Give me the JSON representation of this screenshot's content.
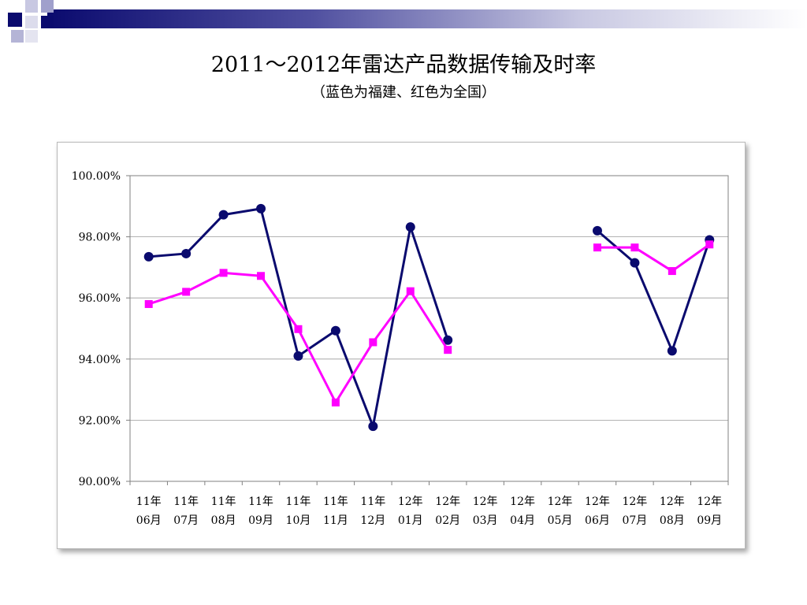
{
  "slide": {
    "title": "2011～2012年雷达产品数据传输及时率",
    "subtitle": "（蓝色为福建、红色为全国）",
    "decor_colors": [
      "#0a0a6e",
      "#2b2b8a",
      "#7878b4",
      "#b4b4d6",
      "#e4e4f0"
    ]
  },
  "chart_data": {
    "type": "line",
    "title": "2011～2012年雷达产品数据传输及时率",
    "subtitle": "（蓝色为福建、红色为全国）",
    "xlabel": "",
    "ylabel": "",
    "categories": [
      [
        "11年",
        "06月"
      ],
      [
        "11年",
        "07月"
      ],
      [
        "11年",
        "08月"
      ],
      [
        "11年",
        "09月"
      ],
      [
        "11年",
        "10月"
      ],
      [
        "11年",
        "11月"
      ],
      [
        "11年",
        "12月"
      ],
      [
        "12年",
        "01月"
      ],
      [
        "12年",
        "02月"
      ],
      [
        "12年",
        "03月"
      ],
      [
        "12年",
        "04月"
      ],
      [
        "12年",
        "05月"
      ],
      [
        "12年",
        "06月"
      ],
      [
        "12年",
        "07月"
      ],
      [
        "12年",
        "08月"
      ],
      [
        "12年",
        "09月"
      ]
    ],
    "y_ticks": [
      "100.00%",
      "98.00%",
      "96.00%",
      "94.00%",
      "92.00%",
      "90.00%"
    ],
    "ylim": [
      90,
      100
    ],
    "grid": true,
    "legend": "none",
    "series": [
      {
        "color": "#0a0a6e",
        "marker": "circle",
        "values": [
          97.35,
          97.45,
          98.72,
          98.92,
          94.1,
          94.93,
          91.8,
          98.32,
          94.62,
          null,
          null,
          null,
          98.2,
          97.15,
          94.27,
          97.9
        ]
      },
      {
        "color": "#ff00ff",
        "marker": "square",
        "values": [
          95.8,
          96.2,
          96.82,
          96.72,
          94.98,
          92.58,
          94.55,
          96.22,
          94.3,
          null,
          null,
          null,
          97.65,
          97.65,
          96.88,
          97.75
        ]
      }
    ]
  }
}
